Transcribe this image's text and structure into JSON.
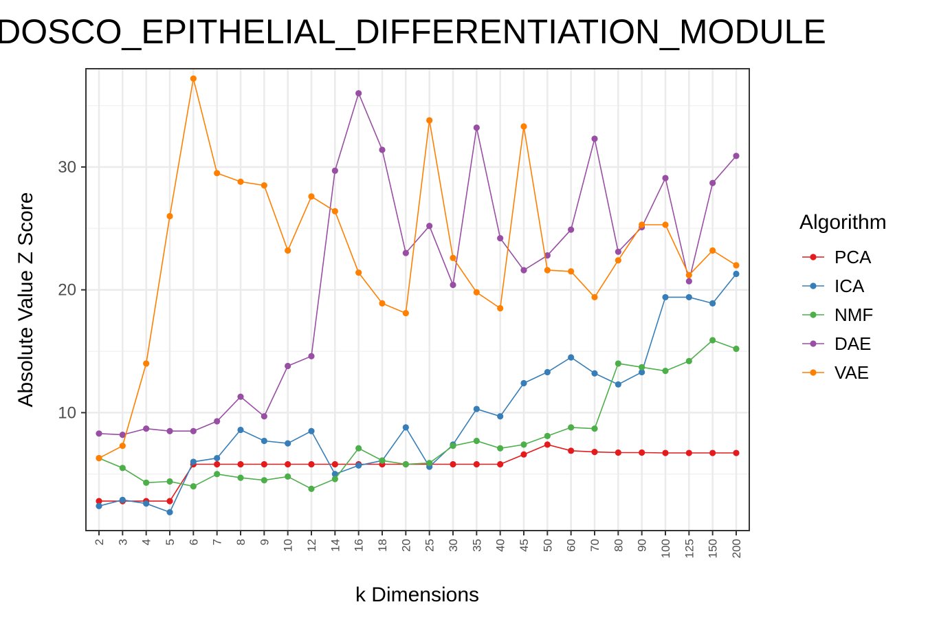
{
  "chart_data": {
    "type": "line",
    "title": "DOSCO_EPITHELIAL_DIFFERENTIATION_MODULE",
    "xlabel": "k Dimensions",
    "ylabel": "Absolute Value Z Score",
    "categories": [
      "2",
      "3",
      "4",
      "5",
      "6",
      "7",
      "8",
      "9",
      "10",
      "12",
      "14",
      "16",
      "18",
      "20",
      "25",
      "30",
      "35",
      "40",
      "45",
      "50",
      "60",
      "70",
      "80",
      "90",
      "100",
      "125",
      "150",
      "200"
    ],
    "yticks": [
      10,
      20,
      30
    ],
    "ylim": [
      0.4,
      38
    ],
    "grid": true,
    "legend": {
      "title": "Algorithm",
      "placement": "right"
    },
    "series": [
      {
        "name": "PCA",
        "color": "#e41a1c",
        "values": [
          2.8,
          2.8,
          2.8,
          2.8,
          5.8,
          5.8,
          5.8,
          5.8,
          5.8,
          5.8,
          5.8,
          5.8,
          5.8,
          5.8,
          5.8,
          5.8,
          5.8,
          5.8,
          6.6,
          7.4,
          6.9,
          6.8,
          6.75,
          6.75,
          6.72,
          6.72,
          6.72,
          6.72
        ]
      },
      {
        "name": "ICA",
        "color": "#377eb8",
        "values": [
          2.4,
          2.9,
          2.6,
          1.9,
          6.0,
          6.3,
          8.6,
          7.7,
          7.5,
          8.5,
          5.0,
          5.7,
          6.1,
          8.8,
          5.6,
          7.4,
          10.3,
          9.7,
          12.4,
          13.3,
          14.5,
          13.2,
          12.3,
          13.3,
          19.4,
          19.4,
          18.9,
          21.3
        ]
      },
      {
        "name": "NMF",
        "color": "#4daf4a",
        "values": [
          6.3,
          5.5,
          4.3,
          4.4,
          4.0,
          5.0,
          4.7,
          4.5,
          4.8,
          3.8,
          4.6,
          7.1,
          6.1,
          5.8,
          5.9,
          7.3,
          7.7,
          7.1,
          7.4,
          8.1,
          8.8,
          8.7,
          14.0,
          13.7,
          13.4,
          14.2,
          15.9,
          15.2
        ]
      },
      {
        "name": "DAE",
        "color": "#984ea3",
        "values": [
          8.3,
          8.2,
          8.7,
          8.5,
          8.5,
          9.3,
          11.3,
          9.7,
          13.8,
          14.6,
          29.7,
          36.0,
          31.4,
          23.0,
          25.2,
          20.4,
          33.2,
          24.2,
          21.6,
          22.8,
          24.9,
          32.3,
          23.1,
          25.1,
          29.1,
          20.7,
          28.7,
          30.9
        ]
      },
      {
        "name": "VAE",
        "color": "#ff7f00",
        "values": [
          6.3,
          7.3,
          14.0,
          26.0,
          37.2,
          29.5,
          28.8,
          28.5,
          23.2,
          27.6,
          26.4,
          21.4,
          18.9,
          18.1,
          33.8,
          22.6,
          19.8,
          18.5,
          33.3,
          21.6,
          21.5,
          19.4,
          22.4,
          25.3,
          25.3,
          21.2,
          23.2,
          22.0
        ]
      }
    ]
  }
}
